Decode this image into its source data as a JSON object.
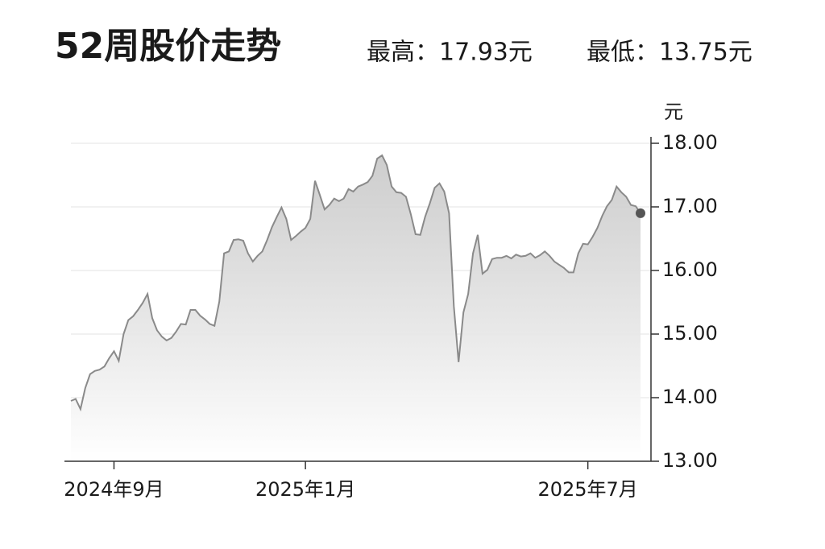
{
  "chart_data": {
    "type": "area",
    "title": "52周股价走势",
    "high_label": "最高：17.93元",
    "low_label": "最低：13.75元",
    "y_unit": "元",
    "categories": [
      null,
      null,
      null,
      null,
      null,
      null,
      null,
      null,
      null,
      "2024年9月",
      null,
      null,
      null,
      null,
      null,
      null,
      null,
      null,
      null,
      null,
      null,
      null,
      null,
      null,
      null,
      null,
      null,
      null,
      null,
      null,
      null,
      null,
      null,
      null,
      null,
      null,
      null,
      null,
      null,
      null,
      null,
      null,
      null,
      null,
      null,
      null,
      null,
      null,
      null,
      "2025年1月",
      null,
      null,
      null,
      null,
      null,
      null,
      null,
      null,
      null,
      null,
      null,
      null,
      null,
      null,
      null,
      null,
      null,
      null,
      null,
      null,
      null,
      null,
      null,
      null,
      null,
      null,
      null,
      null,
      null,
      null,
      null,
      null,
      null,
      null,
      null,
      null,
      null,
      null,
      null,
      null,
      null,
      null,
      null,
      null,
      null,
      null,
      null,
      null,
      null,
      null,
      null,
      null,
      null,
      null,
      null,
      null,
      null,
      null,
      "2025年7月",
      null,
      null,
      null,
      null,
      null,
      null,
      null,
      null,
      null,
      null,
      null
    ],
    "values": [
      13.95,
      13.98,
      13.82,
      14.15,
      14.37,
      14.42,
      14.44,
      14.49,
      14.62,
      14.73,
      14.58,
      15.0,
      15.22,
      15.28,
      15.38,
      15.49,
      15.63,
      15.25,
      15.06,
      14.96,
      14.9,
      14.94,
      15.04,
      15.16,
      15.15,
      15.38,
      15.38,
      15.29,
      15.23,
      15.16,
      15.13,
      15.51,
      16.27,
      16.3,
      16.48,
      16.49,
      16.47,
      16.27,
      16.14,
      16.23,
      16.3,
      16.48,
      16.68,
      16.84,
      16.99,
      16.81,
      16.48,
      16.54,
      16.61,
      16.67,
      16.81,
      17.41,
      17.19,
      16.96,
      17.03,
      17.13,
      17.09,
      17.13,
      17.28,
      17.24,
      17.32,
      17.35,
      17.39,
      17.49,
      17.76,
      17.81,
      17.66,
      17.32,
      17.23,
      17.22,
      17.16,
      16.89,
      16.57,
      16.56,
      16.84,
      17.06,
      17.3,
      17.37,
      17.24,
      16.9,
      15.44,
      14.56,
      15.34,
      15.63,
      16.27,
      16.56,
      15.95,
      16.01,
      16.18,
      16.2,
      16.2,
      16.23,
      16.19,
      16.25,
      16.22,
      16.23,
      16.27,
      16.2,
      16.24,
      16.3,
      16.23,
      16.14,
      16.09,
      16.04,
      15.97,
      15.97,
      16.27,
      16.42,
      16.41,
      16.53,
      16.67,
      16.86,
      17.01,
      17.11,
      17.32,
      17.23,
      17.16,
      17.03,
      17.01,
      16.9
    ],
    "color": "#8a8a8a",
    "ylim": [
      13,
      18
    ],
    "yticks": [
      {
        "value": 13,
        "label": "13.00"
      },
      {
        "value": 14,
        "label": "14.00"
      },
      {
        "value": 15,
        "label": "15.00"
      },
      {
        "value": 16,
        "label": "16.00"
      },
      {
        "value": 17,
        "label": "17.00"
      },
      {
        "value": 18,
        "label": "18.00"
      }
    ],
    "grid": true
  }
}
